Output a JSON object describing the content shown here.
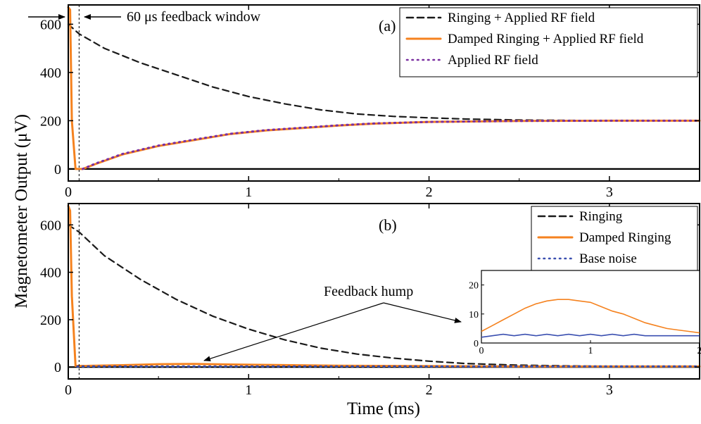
{
  "figure": {
    "ylabel": "Magnetometer Output (μV)",
    "xlabel": "Time (ms)"
  },
  "colors": {
    "ringing": "#1a1a1a",
    "damped": "#f5821f",
    "applied": "#7a2fa0",
    "base_noise": "#3a4fb0"
  },
  "chart_data": [
    {
      "id": "a",
      "type": "line",
      "panel_label": "(a)",
      "xlim": [
        0,
        3.5
      ],
      "ylim": [
        -50,
        680
      ],
      "xticks": [
        0,
        1,
        2,
        3
      ],
      "yticks": [
        0,
        200,
        400,
        600
      ],
      "annotations": {
        "window_label": "60 μs feedback window",
        "window_x": 0.06
      },
      "legend_position": "top-right",
      "series": [
        {
          "name": "Ringing + Applied RF field",
          "style": "dashed",
          "color": "#1a1a1a",
          "x": [
            0,
            0.06,
            0.2,
            0.4,
            0.6,
            0.8,
            1.0,
            1.2,
            1.4,
            1.6,
            1.8,
            2.0,
            2.2,
            2.5,
            3.0,
            3.5
          ],
          "y": [
            600,
            560,
            500,
            440,
            390,
            340,
            300,
            270,
            245,
            228,
            218,
            212,
            207,
            203,
            200,
            200
          ]
        },
        {
          "name": "Damped Ringing + Applied RF field",
          "style": "solid",
          "color": "#f5821f",
          "x": [
            0,
            0.01,
            0.02,
            0.04,
            0.08,
            0.15,
            0.3,
            0.5,
            0.7,
            0.9,
            1.1,
            1.3,
            1.5,
            1.7,
            2.0,
            2.5,
            3.0,
            3.5
          ],
          "y": [
            670,
            660,
            200,
            0,
            0,
            20,
            60,
            95,
            120,
            145,
            160,
            170,
            180,
            188,
            195,
            199,
            200,
            200
          ]
        },
        {
          "name": "Applied RF field",
          "style": "dotted",
          "color": "#7a2fa0",
          "x": [
            0.08,
            0.15,
            0.3,
            0.5,
            0.7,
            0.9,
            1.1,
            1.3,
            1.5,
            1.7,
            2.0,
            2.5,
            3.0,
            3.5
          ],
          "y": [
            0,
            22,
            62,
            97,
            122,
            146,
            161,
            171,
            181,
            189,
            195,
            199,
            200,
            200
          ]
        }
      ]
    },
    {
      "id": "b",
      "type": "line",
      "panel_label": "(b)",
      "xlim": [
        0,
        3.5
      ],
      "ylim": [
        -50,
        690
      ],
      "xticks": [
        0,
        1,
        2,
        3
      ],
      "yticks": [
        0,
        200,
        400,
        600
      ],
      "annotations": {
        "hump_label": "Feedback hump",
        "window_x": 0.06
      },
      "legend_position": "top-right",
      "series": [
        {
          "name": "Ringing",
          "style": "dashed",
          "color": "#1a1a1a",
          "x": [
            0,
            0.06,
            0.2,
            0.4,
            0.6,
            0.8,
            1.0,
            1.2,
            1.4,
            1.6,
            1.8,
            2.0,
            2.2,
            2.5,
            3.0,
            3.5
          ],
          "y": [
            600,
            570,
            470,
            370,
            285,
            215,
            160,
            115,
            80,
            55,
            38,
            25,
            15,
            8,
            3,
            2
          ]
        },
        {
          "name": "Damped Ringing",
          "style": "solid",
          "color": "#f5821f",
          "x": [
            0,
            0.01,
            0.02,
            0.04,
            0.1,
            0.3,
            0.5,
            0.7,
            0.9,
            1.1,
            1.5,
            2.0,
            2.5,
            3.0,
            3.5
          ],
          "y": [
            680,
            660,
            300,
            5,
            5,
            8,
            12,
            13,
            11,
            9,
            6,
            4,
            3,
            3,
            3
          ]
        },
        {
          "name": "Base noise",
          "style": "dotted",
          "color": "#3a4fb0",
          "x": [
            0.05,
            0.5,
            1.0,
            1.5,
            2.0,
            2.5,
            3.0,
            3.5
          ],
          "y": [
            3,
            3,
            3,
            3,
            3,
            3,
            3,
            3
          ]
        }
      ],
      "inset": {
        "type": "line",
        "xlim": [
          0,
          2
        ],
        "ylim": [
          0,
          25
        ],
        "xticks": [
          0,
          1,
          2
        ],
        "yticks": [
          0,
          10,
          20
        ],
        "series": [
          {
            "name": "Damped Ringing",
            "color": "#f5821f",
            "x": [
              0,
              0.1,
              0.2,
              0.3,
              0.4,
              0.5,
              0.6,
              0.7,
              0.8,
              0.9,
              1.0,
              1.1,
              1.2,
              1.3,
              1.4,
              1.5,
              1.6,
              1.7,
              1.8,
              1.9,
              2.0
            ],
            "y": [
              4,
              6,
              8,
              10,
              12,
              13.5,
              14.5,
              15,
              15,
              14.5,
              14,
              12.5,
              11,
              10,
              8.5,
              7,
              6,
              5,
              4.5,
              4,
              3.5
            ]
          },
          {
            "name": "Base noise",
            "color": "#3a4fb0",
            "x": [
              0,
              0.1,
              0.2,
              0.3,
              0.4,
              0.5,
              0.6,
              0.7,
              0.8,
              0.9,
              1.0,
              1.1,
              1.2,
              1.3,
              1.4,
              1.5,
              1.6,
              1.7,
              1.8,
              1.9,
              2.0
            ],
            "y": [
              2,
              2.5,
              3,
              2.5,
              3,
              2.5,
              3,
              2.5,
              3,
              2.5,
              3,
              2.5,
              3,
              2.5,
              3,
              2.5,
              2.5,
              2.5,
              2.5,
              2.5,
              2.5
            ]
          }
        ]
      }
    }
  ]
}
